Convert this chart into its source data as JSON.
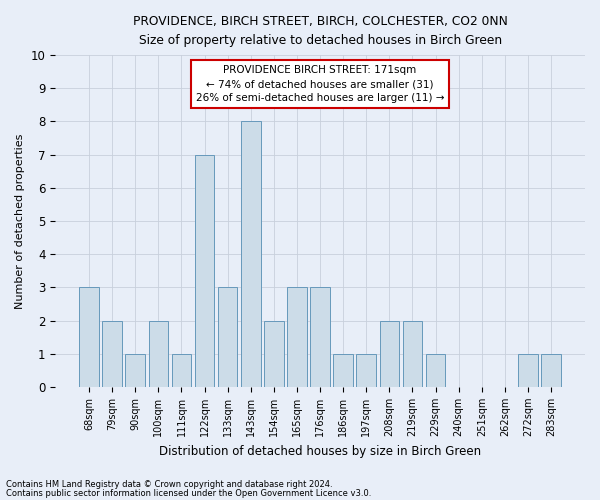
{
  "title1": "PROVIDENCE, BIRCH STREET, BIRCH, COLCHESTER, CO2 0NN",
  "title2": "Size of property relative to detached houses in Birch Green",
  "xlabel": "Distribution of detached houses by size in Birch Green",
  "ylabel": "Number of detached properties",
  "categories": [
    "68sqm",
    "79sqm",
    "90sqm",
    "100sqm",
    "111sqm",
    "122sqm",
    "133sqm",
    "143sqm",
    "154sqm",
    "165sqm",
    "176sqm",
    "186sqm",
    "197sqm",
    "208sqm",
    "219sqm",
    "229sqm",
    "240sqm",
    "251sqm",
    "262sqm",
    "272sqm",
    "283sqm"
  ],
  "values": [
    3,
    2,
    1,
    2,
    1,
    7,
    3,
    8,
    2,
    3,
    3,
    1,
    1,
    2,
    2,
    1,
    0,
    0,
    0,
    1,
    1
  ],
  "bar_color": "#ccdce8",
  "bar_edge_color": "#6699bb",
  "grid_color": "#c8d0dc",
  "background_color": "#e8eef8",
  "annotation_text": "PROVIDENCE BIRCH STREET: 171sqm\n← 74% of detached houses are smaller (31)\n26% of semi-detached houses are larger (11) →",
  "annotation_box_color": "#ffffff",
  "annotation_border_color": "#cc0000",
  "ylim": [
    0,
    10
  ],
  "yticks": [
    0,
    1,
    2,
    3,
    4,
    5,
    6,
    7,
    8,
    9,
    10
  ],
  "footnote1": "Contains HM Land Registry data © Crown copyright and database right 2024.",
  "footnote2": "Contains public sector information licensed under the Open Government Licence v3.0."
}
